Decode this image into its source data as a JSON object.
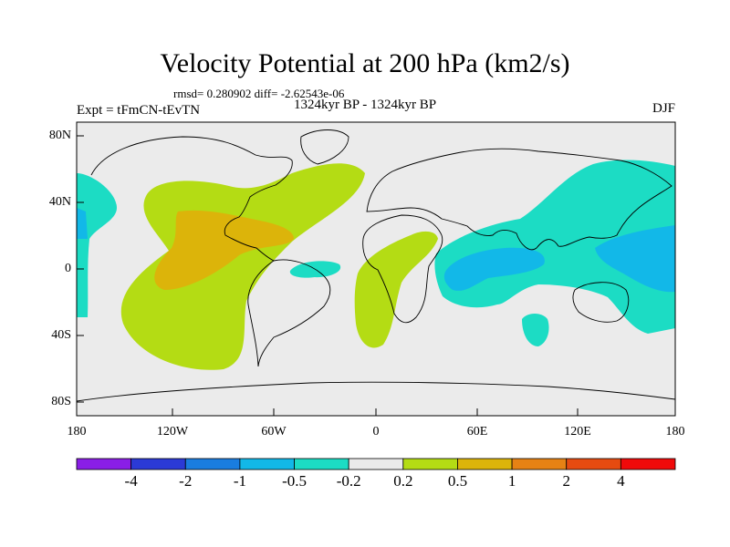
{
  "title": "Velocity Potential at 200 hPa (km2/s)",
  "stats_line": "rmsd= 0.280902 diff= -2.62543e-06",
  "experiment": "Expt = tFmCN-tEvTN",
  "period": "1324kyr BP - 1324kyr BP",
  "season": "DJF",
  "lat_labels": [
    "80N",
    "40N",
    "0",
    "40S",
    "80S"
  ],
  "lon_labels": [
    "180",
    "120W",
    "60W",
    "0",
    "60E",
    "120E",
    "180"
  ],
  "colorbar": {
    "labels": [
      "-4",
      "-2",
      "-1",
      "-0.5",
      "-0.2",
      "0.2",
      "0.5",
      "1",
      "2",
      "4"
    ],
    "colors": [
      "#8a1ee6",
      "#2b3ad6",
      "#1a7de0",
      "#12b8e8",
      "#1cdcc4",
      "#ebebeb",
      "#b4dc14",
      "#dcb40a",
      "#e68214",
      "#e64b10",
      "#f00a0a"
    ]
  },
  "map": {
    "background_color": "#ebebeb",
    "coastline_color": "#000000"
  }
}
